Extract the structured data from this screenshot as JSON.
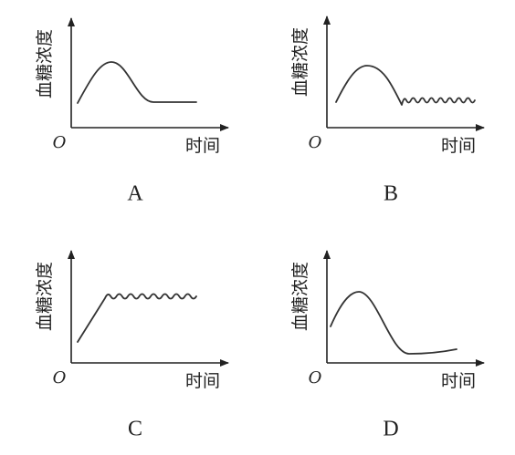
{
  "panels": [
    {
      "y_label": "血糖浓度",
      "x_label": "时间",
      "origin": "O",
      "caption": "A"
    },
    {
      "y_label": "血糖浓度",
      "x_label": "时间",
      "origin": "O",
      "caption": "B"
    },
    {
      "y_label": "血糖浓度",
      "x_label": "时间",
      "origin": "O",
      "caption": "C"
    },
    {
      "y_label": "血糖浓度",
      "x_label": "时间",
      "origin": "O",
      "caption": "D"
    }
  ]
}
